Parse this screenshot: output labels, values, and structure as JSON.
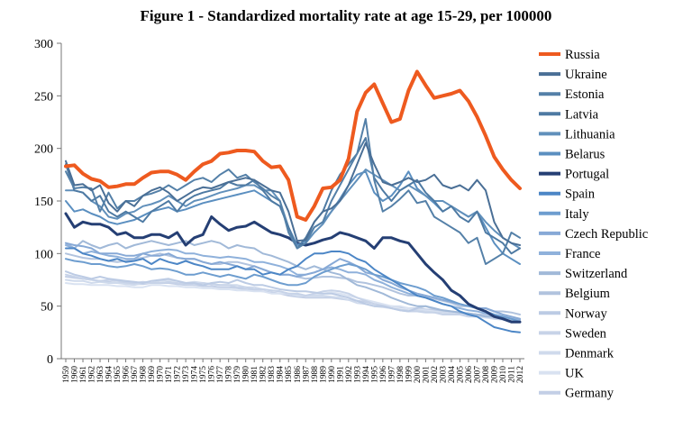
{
  "chart_data": {
    "type": "line",
    "title": "Figure 1 - Standardized mortality rate at age 15-29, per 100000",
    "xlabel": "",
    "ylabel": "",
    "ylim": [
      0,
      300
    ],
    "yticks": [
      0,
      50,
      100,
      150,
      200,
      250,
      300
    ],
    "grid": false,
    "legend_position": "right",
    "x": [
      1959,
      1960,
      1961,
      1962,
      1963,
      1964,
      1965,
      1966,
      1967,
      1968,
      1969,
      1970,
      1971,
      1972,
      1973,
      1974,
      1975,
      1976,
      1977,
      1978,
      1979,
      1980,
      1981,
      1982,
      1983,
      1984,
      1985,
      1986,
      1987,
      1988,
      1989,
      1990,
      1991,
      1992,
      1993,
      1994,
      1995,
      1996,
      1997,
      1998,
      1999,
      2000,
      2001,
      2002,
      2003,
      2004,
      2005,
      2006,
      2007,
      2008,
      2009,
      2010,
      2011,
      2012
    ],
    "series": [
      {
        "name": "Russia",
        "color": "#ee5a1f",
        "width": 4,
        "values": [
          183,
          184,
          176,
          171,
          169,
          163,
          164,
          166,
          166,
          172,
          177,
          178,
          178,
          175,
          170,
          178,
          185,
          188,
          195,
          196,
          198,
          198,
          197,
          188,
          182,
          183,
          170,
          135,
          132,
          145,
          162,
          163,
          170,
          190,
          235,
          253,
          261,
          243,
          225,
          228,
          255,
          273,
          260,
          248,
          250,
          252,
          255,
          245,
          230,
          212,
          192,
          180,
          170,
          162
        ]
      },
      {
        "name": "Ukraine",
        "color": "#4a6f96",
        "width": 2,
        "values": [
          188,
          165,
          166,
          160,
          165,
          148,
          140,
          150,
          145,
          155,
          160,
          163,
          158,
          150,
          155,
          160,
          163,
          162,
          165,
          168,
          170,
          172,
          170,
          165,
          160,
          158,
          140,
          112,
          113,
          130,
          140,
          143,
          150,
          165,
          185,
          205,
          185,
          168,
          165,
          168,
          172,
          168,
          170,
          175,
          165,
          162,
          165,
          160,
          170,
          160,
          130,
          115,
          110,
          108
        ]
      },
      {
        "name": "Estonia",
        "color": "#5480a8",
        "width": 2,
        "values": [
          178,
          162,
          163,
          162,
          140,
          158,
          143,
          150,
          150,
          155,
          157,
          160,
          165,
          160,
          165,
          170,
          172,
          168,
          175,
          180,
          172,
          175,
          168,
          162,
          155,
          150,
          120,
          105,
          110,
          125,
          130,
          150,
          165,
          180,
          195,
          228,
          170,
          140,
          145,
          152,
          160,
          148,
          150,
          135,
          130,
          125,
          120,
          110,
          115,
          90,
          95,
          100,
          120,
          115
        ]
      },
      {
        "name": "Latvia",
        "color": "#4e7aa3",
        "width": 2,
        "values": [
          185,
          160,
          158,
          150,
          155,
          140,
          135,
          140,
          135,
          130,
          140,
          145,
          150,
          140,
          150,
          155,
          158,
          160,
          162,
          168,
          165,
          165,
          170,
          160,
          150,
          145,
          125,
          105,
          115,
          130,
          140,
          160,
          175,
          185,
          195,
          210,
          172,
          160,
          150,
          160,
          165,
          170,
          158,
          150,
          140,
          145,
          135,
          130,
          140,
          120,
          115,
          110,
          100,
          105
        ]
      },
      {
        "name": "Lithuania",
        "color": "#6190bb",
        "width": 2,
        "values": [
          160,
          160,
          158,
          150,
          145,
          135,
          133,
          138,
          140,
          145,
          147,
          150,
          155,
          150,
          145,
          150,
          152,
          155,
          158,
          160,
          162,
          165,
          165,
          160,
          160,
          150,
          125,
          105,
          110,
          120,
          128,
          140,
          150,
          160,
          170,
          180,
          175,
          170,
          165,
          160,
          165,
          160,
          155,
          150,
          150,
          145,
          140,
          135,
          140,
          130,
          122,
          115,
          110,
          105
        ]
      },
      {
        "name": "Belarus",
        "color": "#5b8fc0",
        "width": 2,
        "values": [
          150,
          140,
          142,
          138,
          135,
          130,
          128,
          130,
          132,
          136,
          140,
          142,
          144,
          140,
          142,
          145,
          148,
          150,
          152,
          154,
          156,
          158,
          160,
          155,
          150,
          145,
          125,
          108,
          112,
          125,
          130,
          140,
          152,
          165,
          175,
          178,
          158,
          150,
          155,
          165,
          178,
          162,
          155,
          148,
          140,
          145,
          140,
          135,
          140,
          125,
          110,
          100,
          95,
          90
        ]
      },
      {
        "name": "Portugal",
        "color": "#253f74",
        "width": 3,
        "values": [
          138,
          125,
          130,
          128,
          128,
          125,
          118,
          120,
          115,
          115,
          118,
          118,
          115,
          120,
          108,
          115,
          118,
          135,
          128,
          122,
          125,
          126,
          130,
          125,
          120,
          118,
          115,
          110,
          108,
          110,
          113,
          115,
          120,
          118,
          115,
          112,
          105,
          115,
          115,
          112,
          110,
          100,
          90,
          82,
          75,
          65,
          60,
          52,
          48,
          45,
          40,
          38,
          35,
          35
        ]
      },
      {
        "name": "Spain",
        "color": "#4c86c6",
        "width": 2,
        "values": [
          105,
          105,
          100,
          98,
          95,
          93,
          95,
          92,
          93,
          95,
          90,
          95,
          92,
          90,
          93,
          90,
          88,
          85,
          85,
          85,
          88,
          85,
          85,
          80,
          82,
          80,
          85,
          88,
          95,
          100,
          100,
          102,
          102,
          100,
          95,
          92,
          85,
          80,
          75,
          70,
          65,
          60,
          58,
          55,
          52,
          50,
          45,
          42,
          40,
          35,
          30,
          28,
          26,
          25
        ]
      },
      {
        "name": "Italy",
        "color": "#6d9dcf",
        "width": 2,
        "values": [
          95,
          93,
          92,
          90,
          90,
          88,
          87,
          88,
          90,
          88,
          85,
          86,
          85,
          83,
          80,
          80,
          82,
          80,
          78,
          80,
          78,
          76,
          80,
          78,
          75,
          72,
          70,
          70,
          72,
          78,
          82,
          85,
          88,
          90,
          88,
          85,
          80,
          78,
          75,
          72,
          70,
          68,
          65,
          60,
          58,
          55,
          52,
          50,
          48,
          45,
          42,
          40,
          38,
          35
        ]
      },
      {
        "name": "Czech Republic",
        "color": "#87a9d6",
        "width": 2,
        "values": [
          110,
          108,
          107,
          105,
          100,
          100,
          100,
          98,
          98,
          100,
          98,
          98,
          100,
          96,
          95,
          95,
          92,
          90,
          92,
          90,
          88,
          85,
          88,
          85,
          82,
          80,
          80,
          78,
          80,
          82,
          85,
          90,
          95,
          92,
          88,
          82,
          80,
          75,
          72,
          68,
          65,
          62,
          60,
          58,
          56,
          54,
          52,
          50,
          48,
          48,
          45,
          42,
          40,
          38
        ]
      },
      {
        "name": "France",
        "color": "#8fb1db",
        "width": 2,
        "values": [
          108,
          105,
          100,
          102,
          100,
          98,
          97,
          95,
          95,
          100,
          102,
          103,
          104,
          103,
          100,
          100,
          98,
          97,
          96,
          97,
          96,
          95,
          92,
          92,
          90,
          88,
          85,
          80,
          80,
          82,
          85,
          87,
          85,
          82,
          82,
          80,
          75,
          72,
          68,
          65,
          62,
          60,
          58,
          55,
          52,
          50,
          48,
          46,
          45,
          43,
          42,
          40,
          38,
          37
        ]
      },
      {
        "name": "Switzerland",
        "color": "#a1b9d8",
        "width": 2,
        "values": [
          110,
          105,
          112,
          108,
          105,
          108,
          110,
          105,
          108,
          110,
          112,
          110,
          108,
          110,
          112,
          108,
          110,
          112,
          110,
          105,
          108,
          106,
          105,
          100,
          98,
          95,
          92,
          88,
          85,
          88,
          85,
          82,
          80,
          75,
          70,
          68,
          65,
          62,
          58,
          55,
          52,
          50,
          50,
          48,
          46,
          45,
          44,
          43,
          42,
          40,
          40,
          38,
          36,
          35
        ]
      },
      {
        "name": "Belgium",
        "color": "#b1c3de",
        "width": 2,
        "values": [
          100,
          98,
          96,
          95,
          95,
          93,
          92,
          93,
          95,
          96,
          98,
          100,
          98,
          96,
          95,
          95,
          92,
          90,
          90,
          92,
          92,
          90,
          88,
          85,
          82,
          80,
          80,
          78,
          76,
          77,
          78,
          78,
          77,
          76,
          73,
          72,
          70,
          68,
          65,
          62,
          60,
          60,
          58,
          57,
          55,
          53,
          50,
          50,
          48,
          48,
          45,
          45,
          44,
          42
        ]
      },
      {
        "name": "Norway",
        "color": "#bccbe4",
        "width": 2,
        "values": [
          83,
          80,
          78,
          76,
          78,
          76,
          75,
          74,
          73,
          72,
          74,
          75,
          76,
          74,
          72,
          72,
          70,
          72,
          73,
          72,
          75,
          72,
          70,
          70,
          68,
          66,
          65,
          64,
          64,
          63,
          62,
          62,
          60,
          58,
          55,
          52,
          50,
          50,
          48,
          46,
          45,
          48,
          50,
          47,
          46,
          45,
          44,
          43,
          42,
          42,
          40,
          40,
          38,
          36
        ]
      },
      {
        "name": "Sweden",
        "color": "#c7d3e8",
        "width": 2,
        "values": [
          80,
          78,
          76,
          75,
          74,
          75,
          74,
          73,
          72,
          73,
          72,
          72,
          73,
          72,
          71,
          70,
          72,
          71,
          70,
          70,
          68,
          68,
          66,
          66,
          65,
          64,
          62,
          62,
          60,
          62,
          64,
          65,
          64,
          62,
          58,
          55,
          52,
          50,
          48,
          46,
          45,
          45,
          44,
          44,
          42,
          42,
          42,
          40,
          40,
          40,
          38,
          38,
          37,
          36
        ]
      },
      {
        "name": "Denmark",
        "color": "#cfdaec",
        "width": 2,
        "values": [
          75,
          74,
          74,
          72,
          73,
          72,
          72,
          71,
          70,
          72,
          72,
          74,
          75,
          74,
          72,
          73,
          72,
          71,
          70,
          70,
          70,
          68,
          68,
          66,
          65,
          64,
          62,
          61,
          60,
          60,
          60,
          59,
          58,
          56,
          53,
          52,
          50,
          49,
          48,
          47,
          46,
          46,
          45,
          44,
          44,
          43,
          42,
          42,
          41,
          40,
          40,
          40,
          38,
          37
        ]
      },
      {
        "name": "UK",
        "color": "#d9e2f1",
        "width": 2,
        "values": [
          72,
          71,
          71,
          70,
          70,
          70,
          69,
          69,
          68,
          68,
          70,
          70,
          69,
          69,
          68,
          68,
          67,
          67,
          66,
          66,
          65,
          65,
          64,
          64,
          62,
          62,
          62,
          60,
          60,
          61,
          62,
          63,
          62,
          60,
          58,
          56,
          54,
          52,
          50,
          50,
          48,
          47,
          46,
          45,
          44,
          43,
          42,
          42,
          40,
          39,
          38,
          37,
          36,
          35
        ]
      },
      {
        "name": "Germany",
        "color": "#c3cfe6",
        "width": 2,
        "values": [
          78,
          77,
          76,
          75,
          74,
          73,
          72,
          72,
          71,
          71,
          72,
          72,
          72,
          71,
          70,
          70,
          69,
          69,
          68,
          68,
          67,
          66,
          65,
          64,
          63,
          62,
          60,
          59,
          58,
          58,
          58,
          58,
          57,
          56,
          55,
          54,
          52,
          51,
          50,
          49,
          48,
          48,
          47,
          46,
          45,
          44,
          43,
          43,
          42,
          41,
          40,
          40,
          39,
          38
        ]
      }
    ]
  }
}
